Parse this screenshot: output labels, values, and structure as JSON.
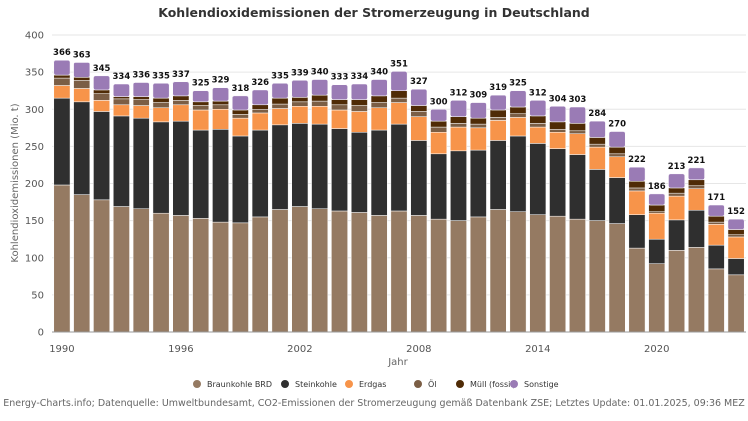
{
  "chart_data": {
    "type": "bar",
    "stacked": true,
    "title": "Kohlendioxidemissionen der Stromerzeugung in Deutschland",
    "xlabel": "Jahr",
    "ylabel": "Kohlendioxidemissionen (Mio. t)",
    "ylim": [
      0,
      400
    ],
    "yticks": [
      0,
      50,
      100,
      150,
      200,
      250,
      300,
      350,
      400
    ],
    "xticks": [
      "1990",
      "1996",
      "2002",
      "2008",
      "2014",
      "2020"
    ],
    "grid": true,
    "legend_position": "bottom",
    "categories": [
      "1990",
      "1991",
      "1992",
      "1993",
      "1994",
      "1995",
      "1996",
      "1997",
      "1998",
      "1999",
      "2000",
      "2001",
      "2002",
      "2003",
      "2004",
      "2005",
      "2006",
      "2007",
      "2008",
      "2009",
      "2010",
      "2011",
      "2012",
      "2013",
      "2014",
      "2015",
      "2016",
      "2017",
      "2018",
      "2019",
      "2020",
      "2021",
      "2022",
      "2023",
      "2024"
    ],
    "series": [
      {
        "name": "Braunkohle BRD",
        "color": "#957a62",
        "values": [
          198,
          185,
          178,
          169,
          166,
          160,
          157,
          153,
          148,
          147,
          155,
          165,
          169,
          166,
          163,
          161,
          157,
          163,
          157,
          152,
          150,
          155,
          165,
          162,
          158,
          156,
          152,
          150,
          146,
          113,
          92,
          110,
          114,
          85,
          77
        ]
      },
      {
        "name": "Steinkohle",
        "color": "#2f2f2f",
        "values": [
          117,
          125,
          119,
          122,
          122,
          123,
          127,
          119,
          125,
          117,
          117,
          114,
          112,
          114,
          111,
          108,
          115,
          117,
          101,
          88,
          94,
          90,
          93,
          102,
          96,
          91,
          87,
          69,
          62,
          45,
          33,
          41,
          50,
          32,
          22
        ]
      },
      {
        "name": "Erdgas",
        "color": "#f7944a",
        "values": [
          17,
          18,
          15,
          15,
          17,
          19,
          22,
          27,
          27,
          24,
          23,
          22,
          23,
          24,
          25,
          28,
          30,
          29,
          32,
          29,
          32,
          30,
          27,
          25,
          22,
          22,
          28,
          30,
          28,
          32,
          35,
          32,
          29,
          28,
          29
        ]
      },
      {
        "name": "Öl",
        "color": "#7b5e45",
        "values": [
          10,
          11,
          9,
          8,
          8,
          7,
          6,
          6,
          6,
          5,
          5,
          6,
          6,
          7,
          7,
          8,
          7,
          6,
          7,
          7,
          5,
          5,
          4,
          5,
          5,
          4,
          4,
          4,
          4,
          4,
          2,
          4,
          4,
          3,
          3
        ]
      },
      {
        "name": "Müll (fossil)",
        "color": "#4f2b06",
        "values": [
          4,
          4,
          5,
          3,
          4,
          6,
          6,
          5,
          5,
          6,
          6,
          8,
          6,
          8,
          7,
          8,
          9,
          10,
          8,
          8,
          9,
          8,
          10,
          9,
          10,
          10,
          10,
          9,
          9,
          9,
          9,
          7,
          8,
          8,
          7
        ]
      },
      {
        "name": "Sonstige",
        "color": "#9a7bb5",
        "values": [
          20,
          20,
          19,
          17,
          19,
          20,
          19,
          15,
          18,
          19,
          20,
          20,
          23,
          21,
          20,
          21,
          22,
          26,
          22,
          16,
          22,
          21,
          20,
          22,
          21,
          21,
          22,
          22,
          21,
          19,
          15,
          19,
          16,
          15,
          14
        ]
      }
    ],
    "totals": [
      366,
      363,
      345,
      334,
      336,
      335,
      337,
      325,
      329,
      318,
      326,
      335,
      339,
      340,
      333,
      334,
      340,
      351,
      327,
      300,
      312,
      309,
      319,
      325,
      312,
      304,
      303,
      284,
      270,
      222,
      186,
      213,
      221,
      171,
      152
    ]
  },
  "footer": "Energy-Charts.info; Datenquelle: Umweltbundesamt, CO2-Emissionen der Stromerzeugung gemäß Datenbank ZSE; Letztes Update: 01.01.2025, 09:36 MEZ"
}
